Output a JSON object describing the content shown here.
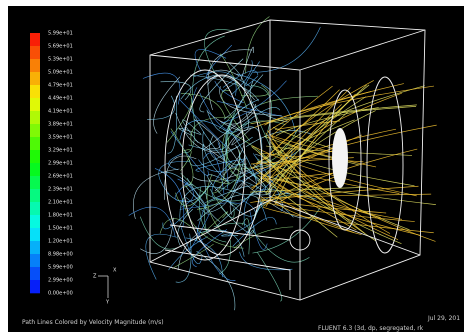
{
  "colorbar": {
    "labels": [
      "5.99e+01",
      "5.69e+01",
      "5.39e+01",
      "5.09e+01",
      "4.79e+01",
      "4.49e+01",
      "4.19e+01",
      "3.89e+01",
      "3.59e+01",
      "3.29e+01",
      "2.99e+01",
      "2.69e+01",
      "2.39e+01",
      "2.10e+01",
      "1.80e+01",
      "1.50e+01",
      "1.20e+01",
      "8.98e+00",
      "5.99e+00",
      "2.99e+00",
      "0.00e+00"
    ]
  },
  "axes_triad": {
    "labels": [
      "Z",
      "X",
      "Y"
    ]
  },
  "footer": {
    "caption": "Path Lines Colored by Velocity Magnitude (m/s)",
    "date": "Jul 29, 201",
    "version": "FLUENT 6.3 (3d, dp, segregated, rk"
  }
}
